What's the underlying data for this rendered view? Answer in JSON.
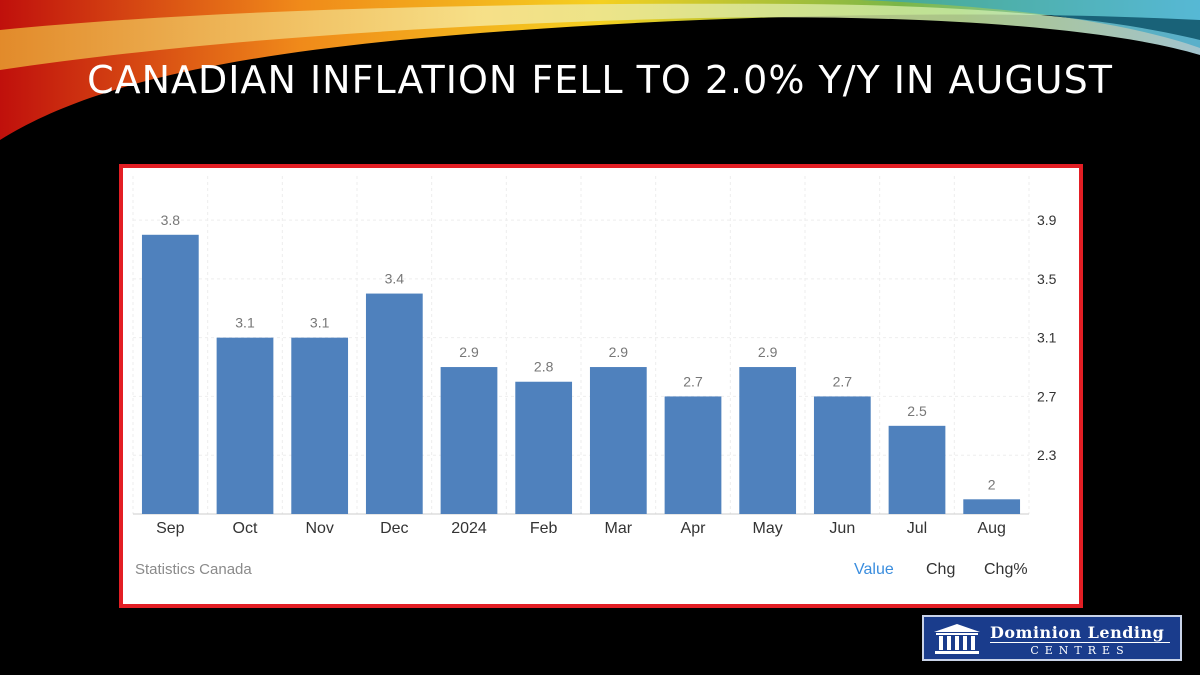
{
  "slide": {
    "title": "CANADIAN INFLATION FELL TO 2.0% Y/Y IN AUGUST"
  },
  "chart_data": {
    "type": "bar",
    "categories": [
      "Sep",
      "Oct",
      "Nov",
      "Dec",
      "2024",
      "Feb",
      "Mar",
      "Apr",
      "May",
      "Jun",
      "Jul",
      "Aug"
    ],
    "values": [
      3.8,
      3.1,
      3.1,
      3.4,
      2.9,
      2.8,
      2.9,
      2.7,
      2.9,
      2.7,
      2.5,
      2
    ],
    "data_labels": [
      "3.8",
      "3.1",
      "3.1",
      "3.4",
      "2.9",
      "2.8",
      "2.9",
      "2.7",
      "2.9",
      "2.7",
      "2.5",
      "2"
    ],
    "y_ticks": [
      "2.3",
      "2.7",
      "3.1",
      "3.5",
      "3.9"
    ],
    "ylim": [
      1.9,
      4.2
    ],
    "y_axis_side": "right",
    "grid": true,
    "bar_color": "#4f81bd",
    "title": "",
    "xlabel": "",
    "ylabel": ""
  },
  "footer": {
    "source": "Statistics Canada",
    "tabs": [
      "Value",
      "Chg",
      "Chg%"
    ]
  },
  "logo": {
    "line1": "Dominion Lending",
    "line2": "CENTRES"
  }
}
